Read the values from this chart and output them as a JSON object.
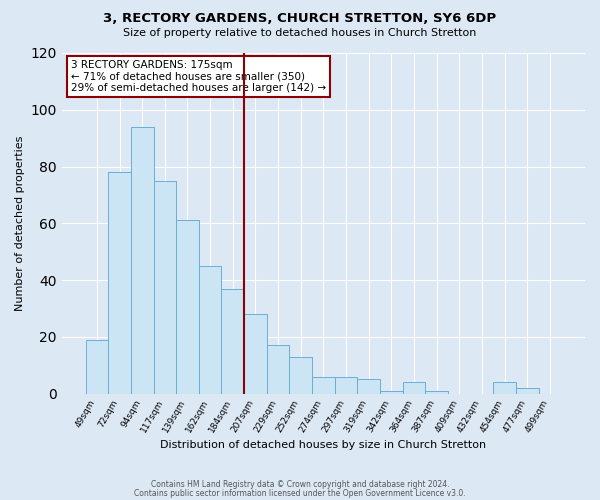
{
  "title": "3, RECTORY GARDENS, CHURCH STRETTON, SY6 6DP",
  "subtitle": "Size of property relative to detached houses in Church Stretton",
  "xlabel": "Distribution of detached houses by size in Church Stretton",
  "ylabel": "Number of detached properties",
  "bar_labels": [
    "49sqm",
    "72sqm",
    "94sqm",
    "117sqm",
    "139sqm",
    "162sqm",
    "184sqm",
    "207sqm",
    "229sqm",
    "252sqm",
    "274sqm",
    "297sqm",
    "319sqm",
    "342sqm",
    "364sqm",
    "387sqm",
    "409sqm",
    "432sqm",
    "454sqm",
    "477sqm",
    "499sqm"
  ],
  "bar_values": [
    19,
    78,
    94,
    75,
    61,
    45,
    37,
    28,
    17,
    13,
    6,
    6,
    5,
    1,
    4,
    1,
    0,
    0,
    4,
    2,
    0
  ],
  "bar_color": "#cce5f5",
  "bar_edge_color": "#6baed6",
  "ylim": [
    0,
    120
  ],
  "yticks": [
    0,
    20,
    40,
    60,
    80,
    100,
    120
  ],
  "vline_color": "#8b0000",
  "vline_x": 6.5,
  "annotation_title": "3 RECTORY GARDENS: 175sqm",
  "annotation_line1": "← 71% of detached houses are smaller (350)",
  "annotation_line2": "29% of semi-detached houses are larger (142) →",
  "annotation_box_edge": "#8b0000",
  "footer1": "Contains HM Land Registry data © Crown copyright and database right 2024.",
  "footer2": "Contains public sector information licensed under the Open Government Licence v3.0.",
  "background_color": "#dde8f5",
  "plot_bg_color": "#dde8f5"
}
